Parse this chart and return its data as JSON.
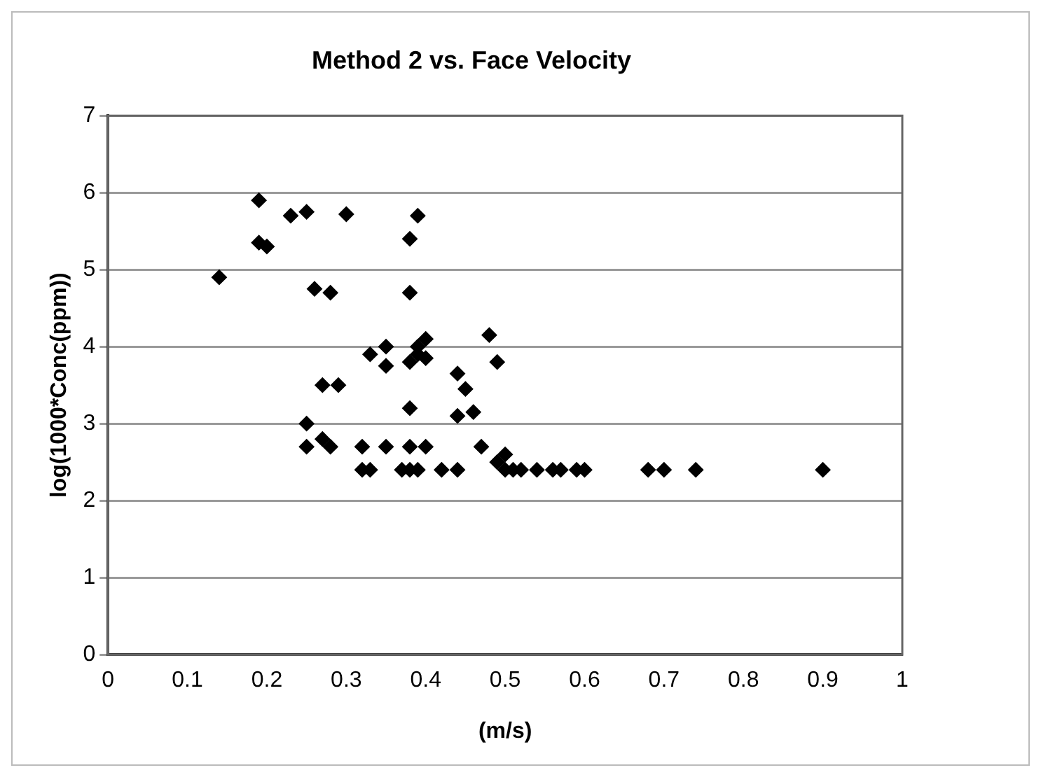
{
  "chart_data": {
    "type": "scatter",
    "title": "Method 2 vs. Face Velocity",
    "xlabel": "(m/s)",
    "ylabel": "log(1000*Conc(ppm))",
    "x": [
      0.14,
      0.19,
      0.19,
      0.2,
      0.23,
      0.25,
      0.3,
      0.26,
      0.28,
      0.25,
      0.25,
      0.27,
      0.28,
      0.27,
      0.29,
      0.32,
      0.32,
      0.33,
      0.33,
      0.35,
      0.35,
      0.35,
      0.38,
      0.39,
      0.38,
      0.38,
      0.39,
      0.39,
      0.4,
      0.4,
      0.38,
      0.38,
      0.38,
      0.39,
      0.4,
      0.42,
      0.44,
      0.44,
      0.45,
      0.44,
      0.46,
      0.47,
      0.48,
      0.49,
      0.49,
      0.5,
      0.5,
      0.51,
      0.52,
      0.54,
      0.56,
      0.57,
      0.59,
      0.6,
      0.68,
      0.7,
      0.74,
      0.9,
      0.37
    ],
    "values": [
      4.9,
      5.9,
      5.35,
      5.3,
      5.7,
      5.75,
      5.72,
      4.75,
      4.7,
      3.0,
      2.7,
      2.8,
      2.7,
      3.5,
      3.5,
      2.7,
      2.4,
      2.4,
      3.9,
      4.0,
      3.75,
      2.7,
      5.4,
      5.7,
      4.7,
      3.8,
      3.9,
      4.0,
      4.1,
      3.85,
      3.2,
      2.7,
      2.4,
      2.4,
      2.7,
      2.4,
      2.4,
      3.65,
      3.45,
      3.1,
      3.15,
      2.7,
      4.15,
      3.8,
      2.5,
      2.6,
      2.4,
      2.4,
      2.4,
      2.4,
      2.4,
      2.4,
      2.4,
      2.4,
      2.4,
      2.4,
      2.4,
      2.4,
      2.4
    ],
    "color": "#000000",
    "marker": "diamond",
    "grid": "y",
    "xlim": [
      0,
      1
    ],
    "xticks": [
      0,
      0.1,
      0.2,
      0.3,
      0.4,
      0.5,
      0.6,
      0.7,
      0.8,
      0.9,
      1
    ],
    "ylim": [
      0,
      7
    ],
    "yticks": [
      0,
      1,
      2,
      3,
      4,
      5,
      6,
      7
    ]
  }
}
